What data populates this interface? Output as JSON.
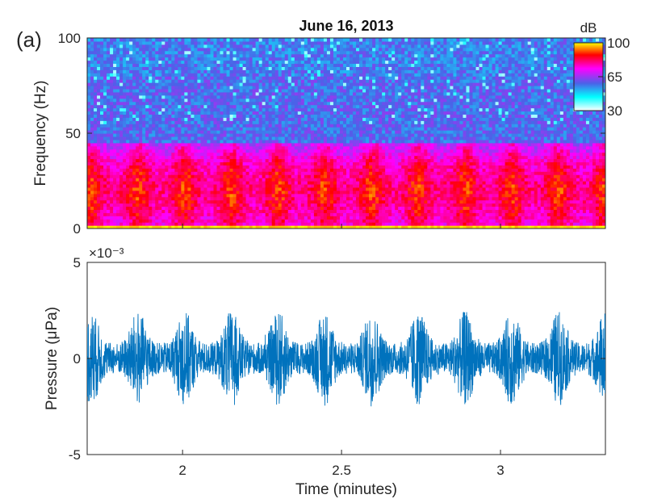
{
  "figure": {
    "panel_label": "(a)",
    "title": "June 16, 2013"
  },
  "chart_data": [
    {
      "type": "heatmap",
      "title": "June 16, 2013",
      "xlabel": "",
      "ylabel": "Frequency (Hz)",
      "xlim": [
        1.7,
        3.33
      ],
      "ylim": [
        0,
        100
      ],
      "yticks": [
        0,
        50,
        100
      ],
      "colorbar": {
        "label": "dB",
        "ticks": [
          30,
          65,
          100
        ],
        "range": [
          30,
          100
        ],
        "colormap": [
          "#ffffff",
          "#00ffff",
          "#4a63e8",
          "#ff00ff",
          "#ff0000",
          "#ffff00"
        ]
      },
      "description_values": {
        "low_freq_band_hz": [
          0,
          45
        ],
        "low_freq_level_db": 85,
        "high_freq_level_db": 60,
        "pulse_period_minutes": 0.147
      }
    },
    {
      "type": "line",
      "title": "",
      "xlabel": "Time (minutes)",
      "ylabel": "Pressure (μPa)",
      "xlim": [
        1.7,
        3.33
      ],
      "ylim": [
        -5,
        5
      ],
      "xticks": [
        2,
        2.5,
        3
      ],
      "xtick_labels": [
        "2",
        "2.5",
        "3"
      ],
      "yticks": [
        -5,
        0,
        5
      ],
      "y_exponent_label": "×10⁻³",
      "series": [
        {
          "color": "#0072bd",
          "baseline_amplitude": 0.8,
          "burst_centers": [
            1.713,
            1.86,
            2.007,
            2.154,
            2.301,
            2.448,
            2.595,
            2.742,
            2.889,
            3.036,
            3.183,
            3.33
          ],
          "burst_peak_amplitude": 2.5
        }
      ]
    }
  ]
}
